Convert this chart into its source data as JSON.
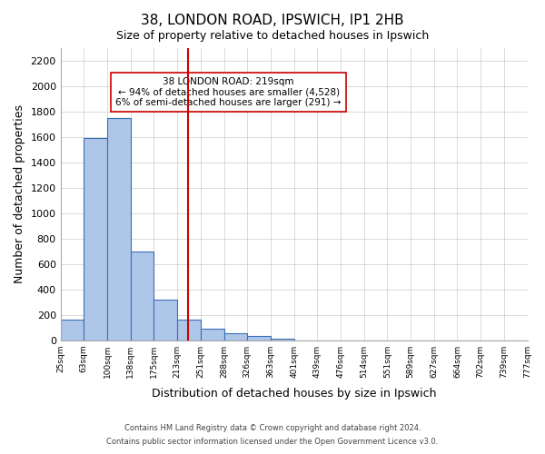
{
  "title1": "38, LONDON ROAD, IPSWICH, IP1 2HB",
  "title2": "Size of property relative to detached houses in Ipswich",
  "xlabel": "Distribution of detached houses by size in Ipswich",
  "ylabel": "Number of detached properties",
  "bin_labels": [
    "25sqm",
    "63sqm",
    "100sqm",
    "138sqm",
    "175sqm",
    "213sqm",
    "251sqm",
    "288sqm",
    "326sqm",
    "363sqm",
    "401sqm",
    "439sqm",
    "476sqm",
    "514sqm",
    "551sqm",
    "589sqm",
    "627sqm",
    "664sqm",
    "702sqm",
    "739sqm",
    "777sqm"
  ],
  "bar_values": [
    160,
    1590,
    1750,
    700,
    320,
    165,
    90,
    55,
    30,
    15,
    0,
    0,
    0,
    0,
    0,
    0,
    0,
    0,
    0,
    0
  ],
  "bar_color": "#aec6e8",
  "bar_edge_color": "#3a6eb5",
  "vline_x": 5.47,
  "vline_color": "#cc0000",
  "ylim": [
    0,
    2300
  ],
  "yticks": [
    0,
    200,
    400,
    600,
    800,
    1000,
    1200,
    1400,
    1600,
    1800,
    2000,
    2200
  ],
  "annotation_box_text": [
    "38 LONDON ROAD: 219sqm",
    "← 94% of detached houses are smaller (4,528)",
    "6% of semi-detached houses are larger (291) →"
  ],
  "footer1": "Contains HM Land Registry data © Crown copyright and database right 2024.",
  "footer2": "Contains public sector information licensed under the Open Government Licence v3.0.",
  "background_color": "#ffffff",
  "grid_color": "#cccccc"
}
